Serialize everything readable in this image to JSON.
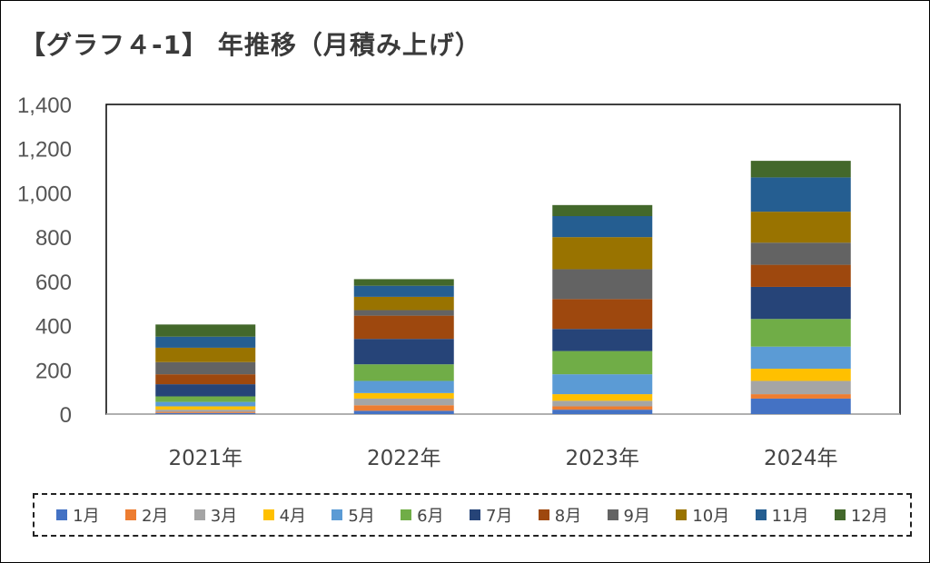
{
  "title": "【グラフ４-1】 年推移（月積み上げ）",
  "chart_data": {
    "type": "bar",
    "stacked": true,
    "categories": [
      "2021年",
      "2022年",
      "2023年",
      "2024年"
    ],
    "ylim": [
      0,
      1400
    ],
    "yticks": [
      0,
      200,
      400,
      600,
      800,
      1000,
      1200,
      1400
    ],
    "ytick_labels": [
      "0",
      "200",
      "400",
      "600",
      "800",
      "1,000",
      "1,200",
      "1,400"
    ],
    "legend_position": "bottom",
    "grid": false,
    "series": [
      {
        "name": "1月",
        "color": "#4472C4",
        "values": [
          5,
          15,
          20,
          70
        ]
      },
      {
        "name": "2月",
        "color": "#ED7D31",
        "values": [
          5,
          25,
          15,
          20
        ]
      },
      {
        "name": "3月",
        "color": "#A5A5A5",
        "values": [
          10,
          30,
          25,
          60
        ]
      },
      {
        "name": "4月",
        "color": "#FFC000",
        "values": [
          15,
          25,
          30,
          55
        ]
      },
      {
        "name": "5月",
        "color": "#5B9BD5",
        "values": [
          20,
          55,
          90,
          100
        ]
      },
      {
        "name": "6月",
        "color": "#70AD47",
        "values": [
          25,
          75,
          105,
          125
        ]
      },
      {
        "name": "7月",
        "color": "#264478",
        "values": [
          55,
          115,
          100,
          145
        ]
      },
      {
        "name": "8月",
        "color": "#9E480E",
        "values": [
          45,
          105,
          135,
          100
        ]
      },
      {
        "name": "9月",
        "color": "#636363",
        "values": [
          55,
          25,
          135,
          100
        ]
      },
      {
        "name": "10月",
        "color": "#997300",
        "values": [
          65,
          60,
          145,
          140
        ]
      },
      {
        "name": "11月",
        "color": "#255E91",
        "values": [
          50,
          50,
          95,
          155
        ]
      },
      {
        "name": "12月",
        "color": "#43682B",
        "values": [
          55,
          30,
          50,
          75
        ]
      }
    ]
  }
}
